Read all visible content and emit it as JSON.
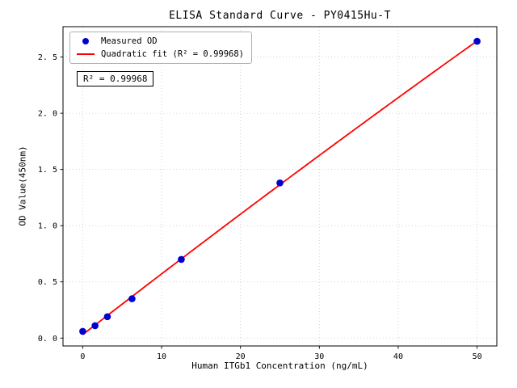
{
  "chart_data": {
    "type": "scatter",
    "title": "ELISA Standard Curve - PY0415Hu-T",
    "xlabel": "Human ITGb1 Concentration (ng/mL)",
    "ylabel": "OD Value(450nm)",
    "series_label": "Measured OD",
    "x": [
      0,
      1.5625,
      3.125,
      6.25,
      12.5,
      25,
      50
    ],
    "y": [
      0.06,
      0.11,
      0.19,
      0.35,
      0.7,
      1.38,
      2.64
    ],
    "fit": {
      "type": "quadratic",
      "label": "Quadratic fit (R² = 0.99968)",
      "r_squared": 0.99968,
      "r_squared_text": "R² = 0.99968"
    },
    "xlim": [
      -2.5,
      52.5
    ],
    "ylim": [
      -0.07,
      2.77
    ],
    "xticks": [
      0,
      10,
      20,
      30,
      40,
      50
    ],
    "yticks": [
      0,
      0.5,
      1.0,
      1.5,
      2.0,
      2.5
    ],
    "xtick_labels": [
      "0",
      "10",
      "20",
      "30",
      "40",
      "50"
    ],
    "ytick_labels": [
      "0. 0",
      "0. 5",
      "1. 0",
      "1. 5",
      "2. 0",
      "2. 5"
    ],
    "grid": true,
    "legend_position": "upper left",
    "colors": {
      "marker": "#0000cd",
      "line": "#ff0000",
      "grid": "#c9c9c9",
      "axis": "#000000"
    }
  }
}
